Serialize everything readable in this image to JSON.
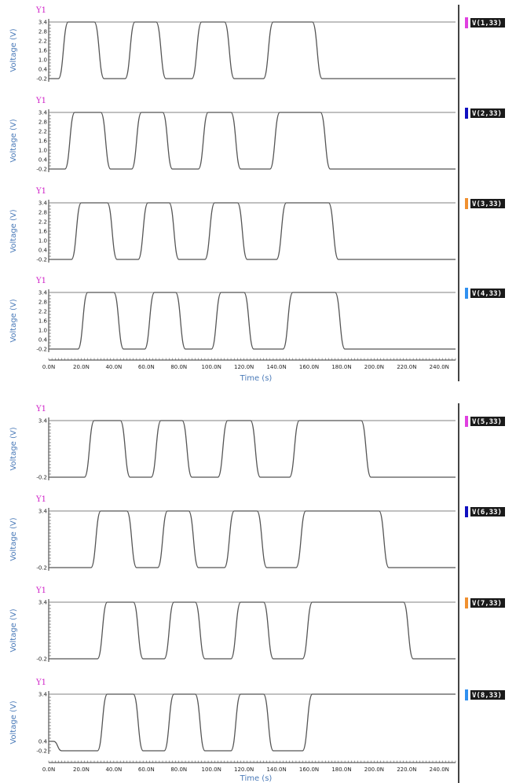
{
  "colors": {
    "trace": "#555555",
    "high_line": "#808080",
    "axis_label": "#4a7ab8",
    "y1_label": "#d020c8"
  },
  "chart_data": [
    {
      "type": "line",
      "title": "",
      "xlabel": "Time (s)",
      "xlim": [
        0,
        250
      ],
      "x_ticks": [
        "0.0N",
        "20.0N",
        "40.0N",
        "60.0N",
        "80.0N",
        "100.0N",
        "120.0N",
        "140.0N",
        "160.0N",
        "180.0N",
        "200.0N",
        "220.0N",
        "240.0N"
      ],
      "panels": [
        {
          "y1_label": "Y1",
          "ylabel": "Voltage (V)",
          "ylim": [
            -0.2,
            3.4
          ],
          "y_ticks": [
            "3.4",
            "2.8",
            "2.2",
            "1.6",
            "1.0",
            "0.4",
            "-0.2"
          ],
          "legend": {
            "name": "V(1,33)",
            "color": "#e040e0"
          },
          "x": [
            0,
            6,
            12,
            28,
            34,
            47,
            53,
            66,
            72,
            88,
            94,
            108,
            114,
            132,
            138,
            162,
            168,
            250
          ],
          "y": [
            -0.2,
            -0.2,
            3.4,
            3.4,
            -0.2,
            -0.2,
            3.4,
            3.4,
            -0.2,
            -0.2,
            3.4,
            3.4,
            -0.2,
            -0.2,
            3.4,
            3.4,
            -0.2,
            -0.2
          ]
        },
        {
          "y1_label": "Y1",
          "ylabel": "Voltage (V)",
          "ylim": [
            -0.2,
            3.4
          ],
          "y_ticks": [
            "3.4",
            "2.8",
            "2.2",
            "1.6",
            "1.0",
            "0.4",
            "-0.2"
          ],
          "legend": {
            "name": "V(2,33)",
            "color": "#1010c0"
          },
          "x": [
            0,
            10,
            16,
            32,
            38,
            51,
            57,
            70,
            76,
            92,
            98,
            112,
            118,
            136,
            142,
            167,
            173,
            250
          ],
          "y": [
            -0.2,
            -0.2,
            3.4,
            3.4,
            -0.2,
            -0.2,
            3.4,
            3.4,
            -0.2,
            -0.2,
            3.4,
            3.4,
            -0.2,
            -0.2,
            3.4,
            3.4,
            -0.2,
            -0.2
          ]
        },
        {
          "y1_label": "Y1",
          "ylabel": "Voltage (V)",
          "ylim": [
            -0.2,
            3.4
          ],
          "y_ticks": [
            "3.4",
            "2.8",
            "2.2",
            "1.6",
            "1.0",
            "0.4",
            "-0.2"
          ],
          "legend": {
            "name": "V(3,33)",
            "color": "#f09030"
          },
          "x": [
            0,
            14,
            20,
            36,
            42,
            55,
            61,
            74,
            80,
            96,
            102,
            116,
            122,
            140,
            146,
            172,
            178,
            250
          ],
          "y": [
            -0.2,
            -0.2,
            3.4,
            3.4,
            -0.2,
            -0.2,
            3.4,
            3.4,
            -0.2,
            -0.2,
            3.4,
            3.4,
            -0.2,
            -0.2,
            3.4,
            3.4,
            -0.2,
            -0.2
          ]
        },
        {
          "y1_label": "Y1",
          "ylabel": "Voltage (V)",
          "ylim": [
            -0.2,
            3.4
          ],
          "y_ticks": [
            "3.4",
            "2.8",
            "2.2",
            "1.6",
            "1.0",
            "0.4",
            "-0.2"
          ],
          "legend": {
            "name": "V(4,33)",
            "color": "#3090f0"
          },
          "x": [
            0,
            18,
            24,
            40,
            46,
            59,
            65,
            78,
            84,
            100,
            106,
            120,
            126,
            144,
            150,
            176,
            182,
            250
          ],
          "y": [
            -0.2,
            -0.2,
            3.4,
            3.4,
            -0.2,
            -0.2,
            3.4,
            3.4,
            -0.2,
            -0.2,
            3.4,
            3.4,
            -0.2,
            -0.2,
            3.4,
            3.4,
            -0.2,
            -0.2
          ]
        }
      ]
    },
    {
      "type": "line",
      "title": "",
      "xlabel": "Time (s)",
      "xlim": [
        0,
        250
      ],
      "x_ticks": [
        "0.0N",
        "20.0N",
        "40.0N",
        "60.0N",
        "80.0N",
        "100.0N",
        "120.0N",
        "140.0N",
        "160.0N",
        "180.0N",
        "200.0N",
        "220.0N",
        "240.0N"
      ],
      "panels": [
        {
          "y1_label": "Y1",
          "ylabel": "Voltage (V)",
          "ylim": [
            -0.2,
            3.4
          ],
          "y_ticks": [
            "3.4",
            "",
            "",
            "",
            "",
            "",
            "-0.2"
          ],
          "legend": {
            "name": "V(5,33)",
            "color": "#e040e0"
          },
          "x": [
            0,
            22,
            28,
            44,
            50,
            63,
            69,
            82,
            88,
            104,
            110,
            124,
            130,
            148,
            154,
            192,
            198,
            250
          ],
          "y": [
            -0.2,
            -0.2,
            3.4,
            3.4,
            -0.2,
            -0.2,
            3.4,
            3.4,
            -0.2,
            -0.2,
            3.4,
            3.4,
            -0.2,
            -0.2,
            3.4,
            3.4,
            -0.2,
            -0.2
          ]
        },
        {
          "y1_label": "Y1",
          "ylabel": "Voltage (V)",
          "ylim": [
            -0.2,
            3.4
          ],
          "y_ticks": [
            "3.4",
            "",
            "",
            "",
            "",
            "",
            "-0.2"
          ],
          "legend": {
            "name": "V(6,33)",
            "color": "#1010c0"
          },
          "x": [
            0,
            26,
            32,
            48,
            54,
            67,
            73,
            86,
            92,
            108,
            114,
            128,
            134,
            152,
            158,
            203,
            209,
            250
          ],
          "y": [
            -0.2,
            -0.2,
            3.4,
            3.4,
            -0.2,
            -0.2,
            3.4,
            3.4,
            -0.2,
            -0.2,
            3.4,
            3.4,
            -0.2,
            -0.2,
            3.4,
            3.4,
            -0.2,
            -0.2
          ]
        },
        {
          "y1_label": "Y1",
          "ylabel": "Voltage (V)",
          "ylim": [
            -0.2,
            3.4
          ],
          "y_ticks": [
            "3.4",
            "",
            "",
            "",
            "",
            "",
            "-0.2"
          ],
          "legend": {
            "name": "V(7,33)",
            "color": "#f09030"
          },
          "x": [
            0,
            30,
            36,
            52,
            58,
            71,
            77,
            90,
            96,
            112,
            118,
            132,
            138,
            156,
            162,
            218,
            224,
            250
          ],
          "y": [
            -0.2,
            -0.2,
            3.4,
            3.4,
            -0.2,
            -0.2,
            3.4,
            3.4,
            -0.2,
            -0.2,
            3.4,
            3.4,
            -0.2,
            -0.2,
            3.4,
            3.4,
            -0.2,
            -0.2
          ]
        },
        {
          "y1_label": "Y1",
          "ylabel": "Voltage (V)",
          "ylim": [
            -0.2,
            3.4
          ],
          "y_ticks": [
            "3.4",
            "",
            "",
            "",
            "",
            "0.4",
            "-0.2"
          ],
          "legend": {
            "name": "V(8,33)",
            "color": "#3090f0"
          },
          "x": [
            0,
            3,
            8,
            30,
            36,
            52,
            58,
            71,
            77,
            90,
            96,
            112,
            118,
            132,
            138,
            156,
            162,
            250
          ],
          "y": [
            0.4,
            0.4,
            -0.2,
            -0.2,
            3.4,
            3.4,
            -0.2,
            -0.2,
            3.4,
            3.4,
            -0.2,
            -0.2,
            3.4,
            3.4,
            -0.2,
            -0.2,
            3.4,
            3.4
          ]
        }
      ]
    }
  ]
}
